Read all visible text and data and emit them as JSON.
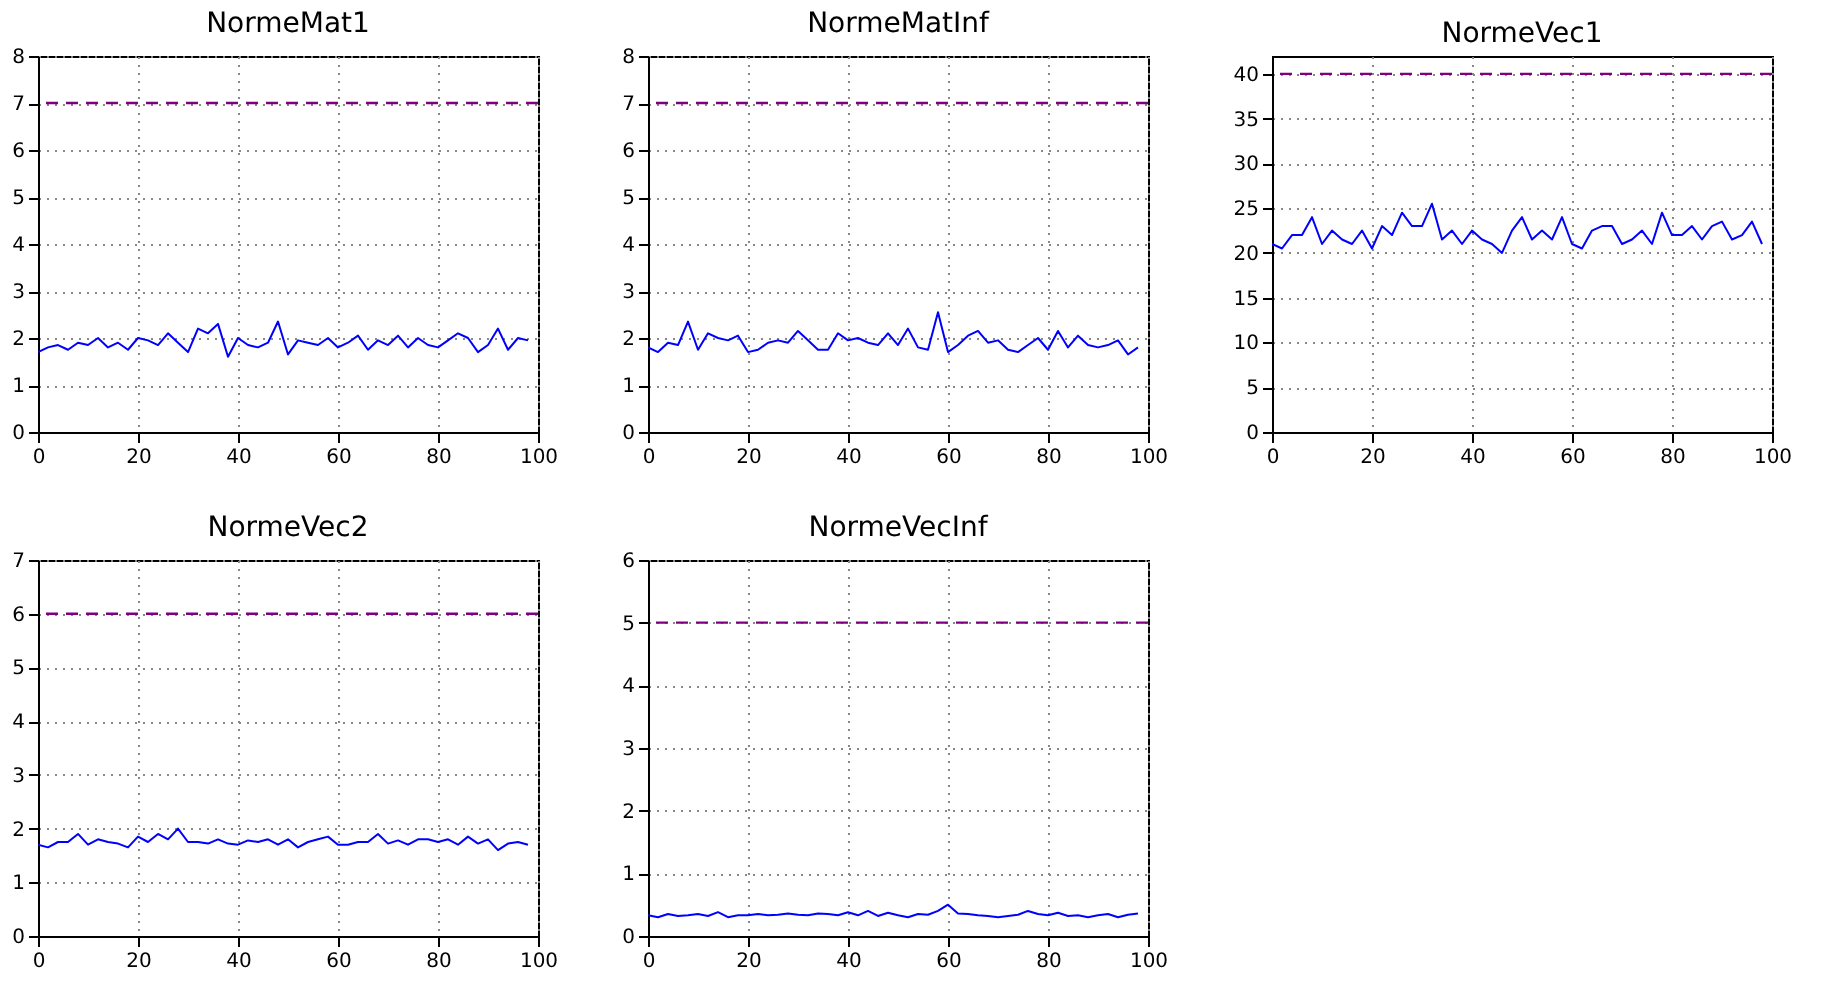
{
  "chart_data": [
    {
      "type": "line",
      "title": "NormeMat1",
      "x": [
        0,
        2,
        4,
        6,
        8,
        10,
        12,
        14,
        16,
        18,
        20,
        22,
        24,
        26,
        28,
        30,
        32,
        34,
        36,
        38,
        40,
        42,
        44,
        46,
        48,
        50,
        52,
        54,
        56,
        58,
        60,
        62,
        64,
        66,
        68,
        70,
        72,
        74,
        76,
        78,
        80,
        82,
        84,
        86,
        88,
        90,
        92,
        94,
        96,
        98
      ],
      "series": [
        {
          "color": "#0000ff",
          "values": [
            1.7,
            1.8,
            1.85,
            1.75,
            1.9,
            1.85,
            2.0,
            1.8,
            1.9,
            1.75,
            2.0,
            1.95,
            1.85,
            2.1,
            1.9,
            1.7,
            2.2,
            2.1,
            2.3,
            1.6,
            2.0,
            1.85,
            1.8,
            1.9,
            2.35,
            1.65,
            1.95,
            1.9,
            1.85,
            2.0,
            1.8,
            1.9,
            2.05,
            1.75,
            1.95,
            1.85,
            2.05,
            1.8,
            2.0,
            1.85,
            1.8,
            1.95,
            2.1,
            2.0,
            1.7,
            1.85,
            2.2,
            1.75,
            2.0,
            1.95
          ]
        }
      ],
      "xlim": [
        0,
        100
      ],
      "xticks": [
        0,
        20,
        40,
        60,
        80,
        100
      ],
      "ylim": [
        0,
        8
      ],
      "yticks": [
        0,
        1,
        2,
        3,
        4,
        5,
        6,
        7,
        8
      ],
      "grid": true,
      "ref_lines": [
        {
          "axis": "y",
          "value": 7,
          "color": "#7f007f",
          "line_style": "dashed"
        }
      ]
    },
    {
      "type": "line",
      "title": "NormeMatInf",
      "x": [
        0,
        2,
        4,
        6,
        8,
        10,
        12,
        14,
        16,
        18,
        20,
        22,
        24,
        26,
        28,
        30,
        32,
        34,
        36,
        38,
        40,
        42,
        44,
        46,
        48,
        50,
        52,
        54,
        56,
        58,
        60,
        62,
        64,
        66,
        68,
        70,
        72,
        74,
        76,
        78,
        80,
        82,
        84,
        86,
        88,
        90,
        92,
        94,
        96,
        98
      ],
      "series": [
        {
          "color": "#0000ff",
          "values": [
            1.8,
            1.7,
            1.9,
            1.85,
            2.35,
            1.75,
            2.1,
            2.0,
            1.95,
            2.05,
            1.7,
            1.75,
            1.9,
            1.95,
            1.9,
            2.15,
            1.95,
            1.75,
            1.75,
            2.1,
            1.95,
            2.0,
            1.9,
            1.85,
            2.1,
            1.85,
            2.2,
            1.8,
            1.75,
            2.55,
            1.7,
            1.85,
            2.05,
            2.15,
            1.9,
            1.95,
            1.75,
            1.7,
            1.85,
            2.0,
            1.75,
            2.15,
            1.8,
            2.05,
            1.85,
            1.8,
            1.85,
            1.95,
            1.65,
            1.8
          ]
        }
      ],
      "xlim": [
        0,
        100
      ],
      "xticks": [
        0,
        20,
        40,
        60,
        80,
        100
      ],
      "ylim": [
        0,
        8
      ],
      "yticks": [
        0,
        1,
        2,
        3,
        4,
        5,
        6,
        7,
        8
      ],
      "grid": true,
      "ref_lines": [
        {
          "axis": "y",
          "value": 7,
          "color": "#7f007f",
          "line_style": "dashed"
        }
      ]
    },
    {
      "type": "line",
      "title": "NormeVec1",
      "x": [
        0,
        2,
        4,
        6,
        8,
        10,
        12,
        14,
        16,
        18,
        20,
        22,
        24,
        26,
        28,
        30,
        32,
        34,
        36,
        38,
        40,
        42,
        44,
        46,
        48,
        50,
        52,
        54,
        56,
        58,
        60,
        62,
        64,
        66,
        68,
        70,
        72,
        74,
        76,
        78,
        80,
        82,
        84,
        86,
        88,
        90,
        92,
        94,
        96,
        98
      ],
      "series": [
        {
          "color": "#0000ff",
          "values": [
            21,
            20.5,
            22,
            22,
            24,
            21,
            22.5,
            21.5,
            21,
            22.5,
            20.5,
            23,
            22,
            24.5,
            23,
            23,
            25.5,
            21.5,
            22.5,
            21,
            22.5,
            21.5,
            21,
            20,
            22.5,
            24,
            21.5,
            22.5,
            21.5,
            24,
            21,
            20.5,
            22.5,
            23,
            23,
            21,
            21.5,
            22.5,
            21,
            24.5,
            22,
            22,
            23,
            21.5,
            23,
            23.5,
            21.5,
            22,
            23.5,
            21
          ]
        }
      ],
      "xlim": [
        0,
        100
      ],
      "xticks": [
        0,
        20,
        40,
        60,
        80,
        100
      ],
      "ylim": [
        0,
        42
      ],
      "yticks": [
        0,
        5,
        10,
        15,
        20,
        25,
        30,
        35,
        40
      ],
      "grid": true,
      "ref_lines": [
        {
          "axis": "y",
          "value": 40,
          "color": "#7f007f",
          "line_style": "dashed"
        }
      ]
    },
    {
      "type": "line",
      "title": "NormeVec2",
      "x": [
        0,
        2,
        4,
        6,
        8,
        10,
        12,
        14,
        16,
        18,
        20,
        22,
        24,
        26,
        28,
        30,
        32,
        34,
        36,
        38,
        40,
        42,
        44,
        46,
        48,
        50,
        52,
        54,
        56,
        58,
        60,
        62,
        64,
        66,
        68,
        70,
        72,
        74,
        76,
        78,
        80,
        82,
        84,
        86,
        88,
        90,
        92,
        94,
        96,
        98
      ],
      "series": [
        {
          "color": "#0000ff",
          "values": [
            1.7,
            1.65,
            1.75,
            1.75,
            1.9,
            1.7,
            1.8,
            1.75,
            1.72,
            1.65,
            1.85,
            1.75,
            1.9,
            1.8,
            2.0,
            1.75,
            1.75,
            1.72,
            1.8,
            1.72,
            1.7,
            1.78,
            1.75,
            1.8,
            1.7,
            1.8,
            1.65,
            1.75,
            1.8,
            1.85,
            1.7,
            1.7,
            1.75,
            1.75,
            1.9,
            1.72,
            1.78,
            1.7,
            1.8,
            1.8,
            1.75,
            1.8,
            1.7,
            1.85,
            1.72,
            1.8,
            1.6,
            1.72,
            1.75,
            1.7
          ]
        }
      ],
      "xlim": [
        0,
        100
      ],
      "xticks": [
        0,
        20,
        40,
        60,
        80,
        100
      ],
      "ylim": [
        0,
        7
      ],
      "yticks": [
        0,
        1,
        2,
        3,
        4,
        5,
        6,
        7
      ],
      "grid": true,
      "ref_lines": [
        {
          "axis": "y",
          "value": 6,
          "color": "#7f007f",
          "line_style": "dashed"
        }
      ]
    },
    {
      "type": "line",
      "title": "NormeVecInf",
      "x": [
        0,
        2,
        4,
        6,
        8,
        10,
        12,
        14,
        16,
        18,
        20,
        22,
        24,
        26,
        28,
        30,
        32,
        34,
        36,
        38,
        40,
        42,
        44,
        46,
        48,
        50,
        52,
        54,
        56,
        58,
        60,
        62,
        64,
        66,
        68,
        70,
        72,
        74,
        76,
        78,
        80,
        82,
        84,
        86,
        88,
        90,
        92,
        94,
        96,
        98
      ],
      "series": [
        {
          "color": "#0000ff",
          "values": [
            0.33,
            0.3,
            0.35,
            0.32,
            0.33,
            0.35,
            0.32,
            0.38,
            0.3,
            0.33,
            0.33,
            0.35,
            0.33,
            0.34,
            0.36,
            0.34,
            0.33,
            0.36,
            0.35,
            0.33,
            0.38,
            0.33,
            0.4,
            0.32,
            0.37,
            0.33,
            0.3,
            0.35,
            0.34,
            0.4,
            0.5,
            0.36,
            0.35,
            0.33,
            0.32,
            0.3,
            0.32,
            0.34,
            0.4,
            0.35,
            0.33,
            0.37,
            0.32,
            0.33,
            0.3,
            0.33,
            0.35,
            0.3,
            0.34,
            0.36
          ]
        }
      ],
      "xlim": [
        0,
        100
      ],
      "xticks": [
        0,
        20,
        40,
        60,
        80,
        100
      ],
      "ylim": [
        0,
        6
      ],
      "yticks": [
        0,
        1,
        2,
        3,
        4,
        5,
        6
      ],
      "grid": true,
      "ref_lines": [
        {
          "axis": "y",
          "value": 5,
          "color": "#7f007f",
          "line_style": "dashed"
        }
      ]
    }
  ]
}
